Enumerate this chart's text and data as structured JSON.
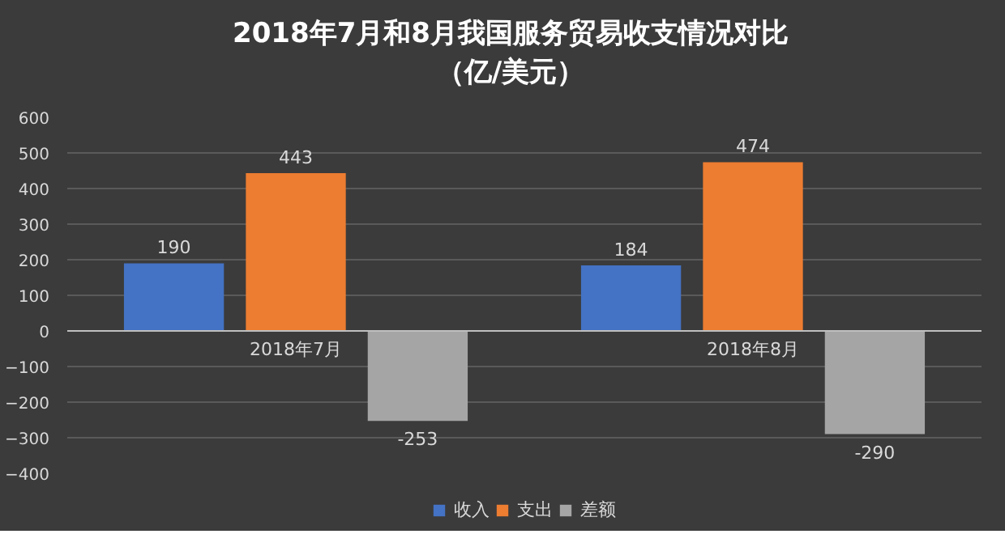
{
  "chart_data": {
    "type": "bar",
    "title": "2018年7月和8月我国服务贸易收支情况对比（亿/美元）",
    "categories": [
      "2018年7月",
      "2018年8月"
    ],
    "series": [
      {
        "name": "收入",
        "color": "#4472c4",
        "values": [
          190,
          184
        ]
      },
      {
        "name": "支出",
        "color": "#ed7d31",
        "values": [
          443,
          474
        ]
      },
      {
        "name": "差额",
        "color": "#a5a5a5",
        "values": [
          -253,
          -290
        ]
      }
    ],
    "ylim": [
      -400,
      600
    ],
    "yticks": [
      -400,
      -300,
      -200,
      -100,
      0,
      100,
      200,
      300,
      400,
      500,
      600
    ],
    "grid": "y",
    "legend": "bottom",
    "data_labels": true
  }
}
